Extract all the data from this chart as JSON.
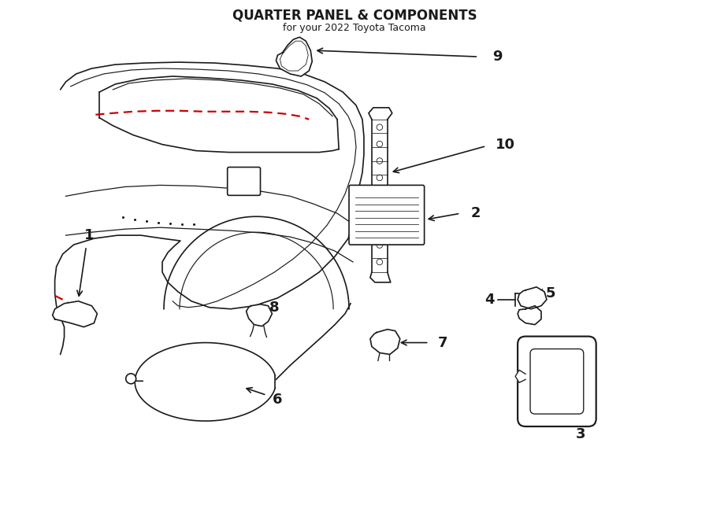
{
  "title": "QUARTER PANEL & COMPONENTS",
  "subtitle": "for your 2022 Toyota Tacoma",
  "background_color": "#ffffff",
  "line_color": "#1a1a1a",
  "red_color": "#cc0000",
  "fig_width": 9.0,
  "fig_height": 6.61,
  "dpi": 100
}
